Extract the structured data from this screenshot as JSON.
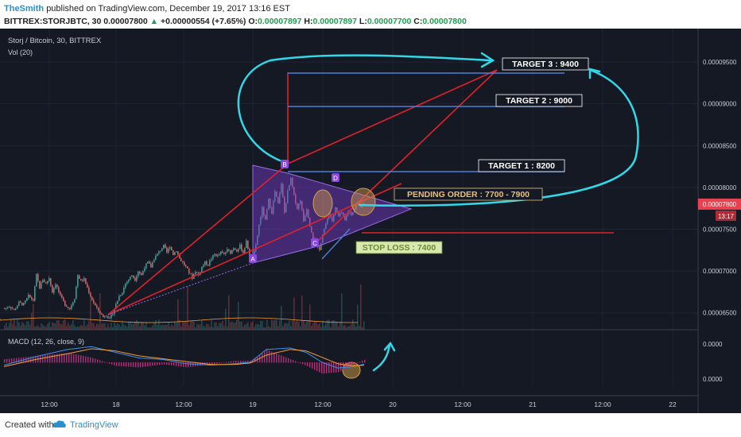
{
  "header": {
    "author": "TheSmith",
    "published": "published on TradingView.com, December 19, 2017 13:16 EST",
    "symbol": "BITTREX:STORJBTC, 30",
    "last": "0.00007800",
    "change": "+0.00000554 (+7.65%)",
    "open_label": "O:",
    "open": "0.00007897",
    "high_label": "H:",
    "high": "0.00007897",
    "low_label": "L:",
    "low": "0.00007700",
    "close_label": "C:",
    "close": "0.00007800"
  },
  "footer": {
    "created": "Created with",
    "brand": "TradingView"
  },
  "colors": {
    "background": "#151924",
    "bull": "#26a69a",
    "bear": "#ef5350",
    "trend": "#e0212b",
    "target": "#4f7fd8",
    "arrow": "#33d8e8",
    "triangle": "#7a3fd0",
    "pending": "#e8c07a",
    "stop": "#a8d46a",
    "macd": "#3d8fe8",
    "signal": "#f39c32",
    "price_tag": "#e8414f"
  },
  "chart_data": {
    "type": "candlestick",
    "title": "Storj / Bitcoin, 30, BITTREX",
    "volume_label": "Vol (20)",
    "x_ticks": [
      "12:00",
      "18",
      "12:00",
      "19",
      "12:00",
      "20",
      "12:00",
      "21",
      "12:00",
      "22"
    ],
    "y_ticks": [
      "0.00009500",
      "0.00009000",
      "0.00008500",
      "0.00008000",
      "0.00007500",
      "0.00007000",
      "0.00006500"
    ],
    "ylim": [
      6.25e-05,
      9.9e-05
    ],
    "last_price": "0.00007800",
    "countdown": "13:17",
    "price_path_close": [
      [
        0,
        6.55
      ],
      [
        6,
        6.58
      ],
      [
        12,
        6.53
      ],
      [
        18,
        6.62
      ],
      [
        24,
        6.6
      ],
      [
        30,
        6.7
      ],
      [
        36,
        6.65
      ],
      [
        40,
        6.95
      ],
      [
        44,
        6.8
      ],
      [
        48,
        6.9
      ],
      [
        52,
        6.85
      ],
      [
        56,
        6.92
      ],
      [
        60,
        6.75
      ],
      [
        64,
        6.85
      ],
      [
        70,
        6.7
      ],
      [
        76,
        6.6
      ],
      [
        82,
        6.55
      ],
      [
        88,
        6.68
      ],
      [
        92,
        6.95
      ],
      [
        96,
        6.88
      ],
      [
        100,
        6.9
      ],
      [
        104,
        6.8
      ],
      [
        108,
        6.7
      ],
      [
        112,
        6.62
      ],
      [
        116,
        6.55
      ],
      [
        120,
        6.5
      ],
      [
        124,
        6.45
      ],
      [
        128,
        6.48
      ],
      [
        132,
        6.42
      ],
      [
        136,
        6.5
      ],
      [
        140,
        6.6
      ],
      [
        144,
        6.7
      ],
      [
        148,
        6.75
      ],
      [
        152,
        6.85
      ],
      [
        156,
        6.9
      ],
      [
        160,
        6.95
      ],
      [
        164,
        6.9
      ],
      [
        168,
        7.0
      ],
      [
        172,
        6.95
      ],
      [
        176,
        7.05
      ],
      [
        180,
        7.1
      ],
      [
        184,
        7.05
      ],
      [
        188,
        7.15
      ],
      [
        192,
        7.2
      ],
      [
        196,
        7.25
      ],
      [
        200,
        7.3
      ],
      [
        204,
        7.22
      ],
      [
        208,
        7.3
      ],
      [
        212,
        7.2
      ],
      [
        216,
        7.25
      ],
      [
        220,
        7.15
      ],
      [
        224,
        7.1
      ],
      [
        228,
        7.05
      ],
      [
        232,
        6.98
      ],
      [
        236,
        6.92
      ],
      [
        240,
        7.0
      ],
      [
        244,
        6.95
      ],
      [
        248,
        7.05
      ],
      [
        252,
        7.1
      ],
      [
        256,
        7.08
      ],
      [
        260,
        7.15
      ],
      [
        264,
        7.2
      ],
      [
        268,
        7.18
      ],
      [
        272,
        7.22
      ],
      [
        276,
        7.2
      ],
      [
        280,
        7.25
      ],
      [
        284,
        7.22
      ],
      [
        288,
        7.28
      ],
      [
        292,
        7.25
      ],
      [
        296,
        7.3
      ],
      [
        300,
        7.22
      ],
      [
        304,
        7.35
      ],
      [
        308,
        7.2
      ],
      [
        312,
        7.15
      ],
      [
        316,
        7.3
      ],
      [
        320,
        7.55
      ],
      [
        324,
        7.75
      ],
      [
        328,
        7.6
      ],
      [
        332,
        7.85
      ],
      [
        336,
        7.7
      ],
      [
        340,
        7.95
      ],
      [
        344,
        7.8
      ],
      [
        348,
        8.05
      ],
      [
        352,
        7.7
      ],
      [
        356,
        7.95
      ],
      [
        360,
        8.1
      ],
      [
        364,
        7.9
      ],
      [
        368,
        7.75
      ],
      [
        372,
        7.85
      ],
      [
        376,
        7.6
      ],
      [
        380,
        7.75
      ],
      [
        384,
        7.55
      ],
      [
        388,
        7.4
      ],
      [
        392,
        7.3
      ],
      [
        396,
        7.25
      ],
      [
        400,
        7.45
      ],
      [
        404,
        7.55
      ],
      [
        408,
        7.7
      ],
      [
        412,
        7.6
      ],
      [
        416,
        7.75
      ],
      [
        420,
        7.65
      ],
      [
        424,
        7.7
      ],
      [
        428,
        7.6
      ],
      [
        432,
        7.72
      ],
      [
        436,
        7.68
      ],
      [
        440,
        7.75
      ],
      [
        444,
        7.82
      ],
      [
        448,
        7.78
      ],
      [
        452,
        7.8
      ]
    ],
    "price_path_x_unit": "bars (30 min each) from chart start",
    "annotations": {
      "target1": "TARGET 1  : 8200",
      "target2": "TARGET 2  : 9000",
      "target3": "TARGET 3  : 9400",
      "pending": "PENDING ORDER : 7700 - 7900",
      "stop": "STOP LOSS : 7400",
      "point_a": "A",
      "point_b": "B",
      "point_c": "C",
      "point_d": "D"
    },
    "levels": {
      "target1": 8.22e-05,
      "target2": 9.03e-05,
      "target3": 9.45e-05,
      "stop": 7.45e-05
    },
    "macd": {
      "label": "MACD (12, 26, close, 9)",
      "y_ticks": [
        "0.0000",
        "0.0000"
      ],
      "macd_line": [
        [
          0,
          -0.2
        ],
        [
          40,
          0.4
        ],
        [
          80,
          0.9
        ],
        [
          110,
          1.1
        ],
        [
          140,
          0.7
        ],
        [
          170,
          0.3
        ],
        [
          200,
          0.2
        ],
        [
          230,
          -0.1
        ],
        [
          260,
          -0.2
        ],
        [
          290,
          -0.1
        ],
        [
          310,
          0.0
        ],
        [
          330,
          0.9
        ],
        [
          360,
          1.0
        ],
        [
          380,
          0.7
        ],
        [
          400,
          0.0
        ],
        [
          420,
          -0.4
        ],
        [
          440,
          -0.3
        ],
        [
          455,
          -0.1
        ]
      ],
      "signal_line": [
        [
          0,
          -0.3
        ],
        [
          40,
          0.2
        ],
        [
          80,
          0.6
        ],
        [
          110,
          0.95
        ],
        [
          140,
          0.8
        ],
        [
          170,
          0.45
        ],
        [
          200,
          0.25
        ],
        [
          230,
          0.05
        ],
        [
          260,
          -0.15
        ],
        [
          290,
          -0.15
        ],
        [
          310,
          -0.05
        ],
        [
          330,
          0.5
        ],
        [
          360,
          0.9
        ],
        [
          380,
          0.8
        ],
        [
          400,
          0.35
        ],
        [
          420,
          -0.1
        ],
        [
          440,
          -0.25
        ],
        [
          455,
          -0.2
        ]
      ]
    }
  }
}
